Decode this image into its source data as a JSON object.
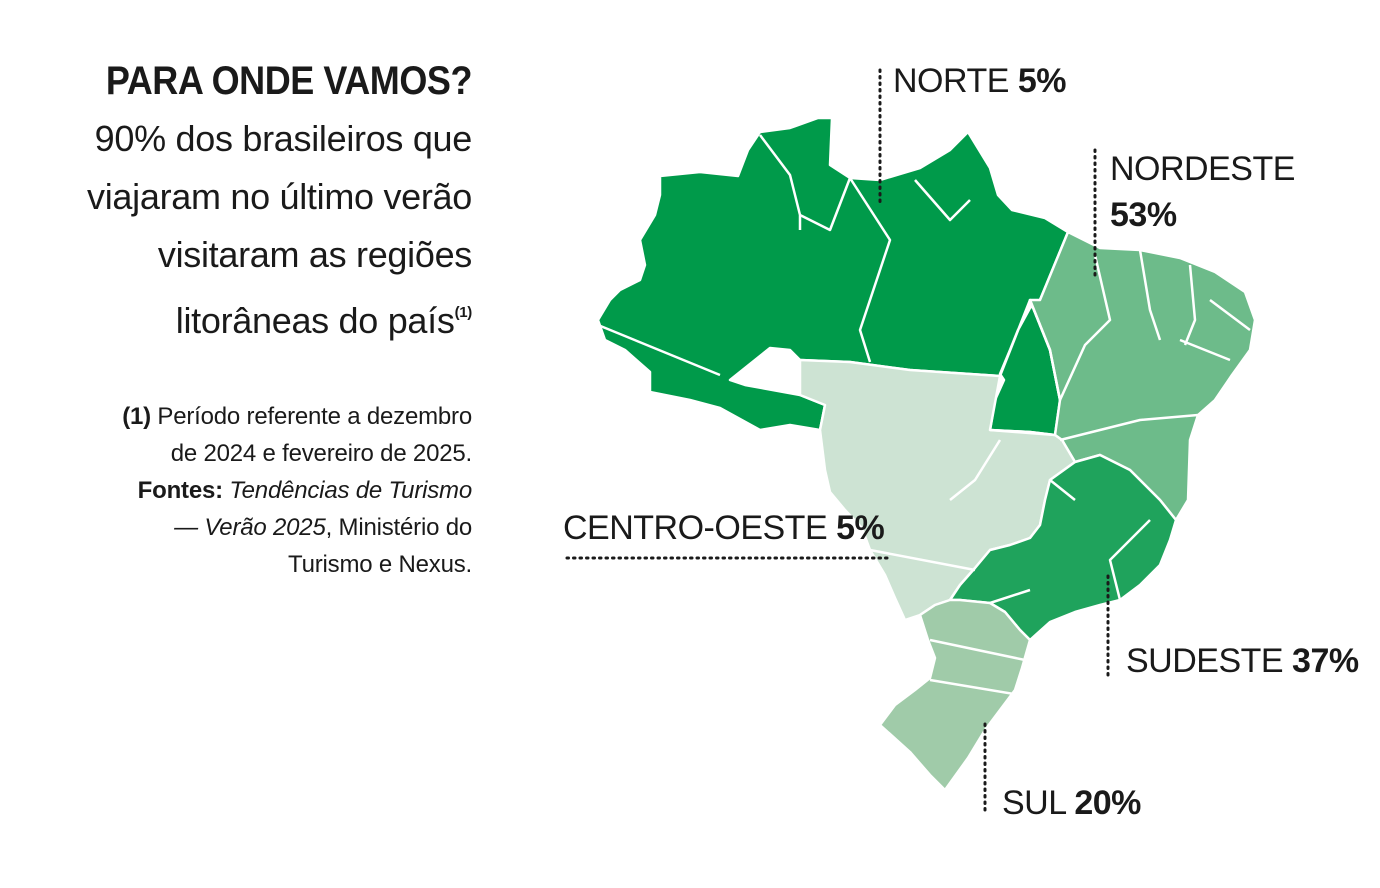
{
  "title": "PARA ONDE VAMOS?",
  "subtitle": "90% dos brasileiros que viajaram no último verão visitaram as regiões litorâneas do país",
  "subtitle_note_marker": "(1)",
  "footnote": {
    "marker": "(1)",
    "text": "Período referente a dezembro de 2024 e fevereiro de 2025.",
    "sources_label": "Fontes:",
    "source_title": "Tendências de Turismo — Verão 2025",
    "source_rest": ", Ministério do Turismo e Nexus."
  },
  "regions": [
    {
      "id": "norte",
      "name": "NORTE",
      "value": "5%",
      "percent": 5,
      "color": "#009a4a"
    },
    {
      "id": "nordeste",
      "name": "NORDESTE",
      "value": "53%",
      "percent": 53,
      "color": "#6dbb8a"
    },
    {
      "id": "centro_oeste",
      "name": "CENTRO-OESTE",
      "value": "5%",
      "percent": 5,
      "color": "#cde3d3"
    },
    {
      "id": "sudeste",
      "name": "SUDESTE",
      "value": "37%",
      "percent": 37,
      "color": "#1fa35c"
    },
    {
      "id": "sul",
      "name": "SUL",
      "value": "20%",
      "percent": 20,
      "color": "#a0cba9"
    }
  ]
}
